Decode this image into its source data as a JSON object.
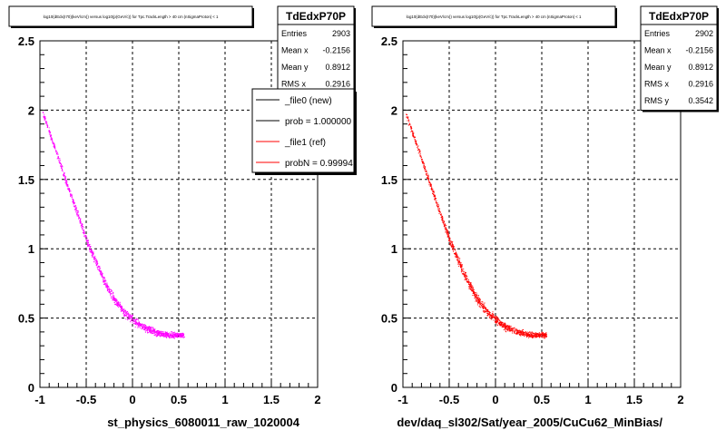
{
  "chart_data": [
    {
      "type": "scatter",
      "title": "log10(dEdx(I70)(keV/cm)) versus log10(p(GeV/c)) for Tpc.TrackLength > 40 cm |nSigmaProton| < 1",
      "xlabel": "st_physics_6080011_raw_1020004",
      "ylabel": "",
      "xlim": [
        -1,
        2
      ],
      "ylim": [
        0,
        2.5
      ],
      "x_ticks": [
        "-1",
        "-0.5",
        "0",
        "0.5",
        "1",
        "1.5",
        "2"
      ],
      "y_ticks": [
        "0",
        "0.5",
        "1",
        "1.5",
        "2",
        "2.5"
      ],
      "grid": true,
      "marker_color": "#ff00ff",
      "curve": [
        {
          "x": -0.97,
          "y": 1.98
        },
        {
          "x": -0.9,
          "y": 1.84
        },
        {
          "x": -0.8,
          "y": 1.65
        },
        {
          "x": -0.7,
          "y": 1.45
        },
        {
          "x": -0.6,
          "y": 1.26
        },
        {
          "x": -0.5,
          "y": 1.07
        },
        {
          "x": -0.4,
          "y": 0.91
        },
        {
          "x": -0.3,
          "y": 0.76
        },
        {
          "x": -0.2,
          "y": 0.64
        },
        {
          "x": -0.1,
          "y": 0.55
        },
        {
          "x": 0.0,
          "y": 0.49
        },
        {
          "x": 0.1,
          "y": 0.44
        },
        {
          "x": 0.2,
          "y": 0.41
        },
        {
          "x": 0.3,
          "y": 0.39
        },
        {
          "x": 0.4,
          "y": 0.38
        },
        {
          "x": 0.55,
          "y": 0.38
        }
      ],
      "stats": {
        "name": "TdEdxP70P",
        "rows": [
          {
            "label": "Entries",
            "value": "2903"
          },
          {
            "label": "Mean x",
            "value": "-0.2156"
          },
          {
            "label": "Mean y",
            "value": "0.8912"
          },
          {
            "label": "RMS x",
            "value": "0.2916"
          }
        ]
      },
      "legend": {
        "placement": "top-right",
        "entries": [
          {
            "label": "_file0 (new)",
            "color": "#000000"
          },
          {
            "label": "prob = 1.000000",
            "color": "#000000"
          },
          {
            "label": "_file1 (ref)",
            "color": "#ff0000"
          },
          {
            "label": "probN = 0.99994",
            "color": "#ff0000"
          }
        ]
      }
    },
    {
      "type": "scatter",
      "title": "log10(dEdx(I70)(keV/cm)) versus log10(p(GeV/c)) for Tpc.TrackLength > 40 cm |nSigmaProton| < 1",
      "xlabel": "dev/daq_sl302/Sat/year_2005/CuCu62_MinBias/",
      "ylabel": "",
      "xlim": [
        -1,
        2
      ],
      "ylim": [
        0,
        2.5
      ],
      "x_ticks": [
        "-1",
        "-0.5",
        "0",
        "0.5",
        "1",
        "1.5",
        "2"
      ],
      "y_ticks": [
        "0",
        "0.5",
        "1",
        "1.5",
        "2",
        "2.5"
      ],
      "grid": true,
      "marker_color": "#ff0000",
      "curve": [
        {
          "x": -0.97,
          "y": 1.98
        },
        {
          "x": -0.9,
          "y": 1.84
        },
        {
          "x": -0.8,
          "y": 1.65
        },
        {
          "x": -0.7,
          "y": 1.45
        },
        {
          "x": -0.6,
          "y": 1.26
        },
        {
          "x": -0.5,
          "y": 1.07
        },
        {
          "x": -0.4,
          "y": 0.91
        },
        {
          "x": -0.3,
          "y": 0.76
        },
        {
          "x": -0.2,
          "y": 0.64
        },
        {
          "x": -0.1,
          "y": 0.55
        },
        {
          "x": 0.0,
          "y": 0.49
        },
        {
          "x": 0.1,
          "y": 0.44
        },
        {
          "x": 0.2,
          "y": 0.41
        },
        {
          "x": 0.3,
          "y": 0.39
        },
        {
          "x": 0.4,
          "y": 0.38
        },
        {
          "x": 0.55,
          "y": 0.38
        }
      ],
      "stats": {
        "name": "TdEdxP70P",
        "rows": [
          {
            "label": "Entries",
            "value": "2902"
          },
          {
            "label": "Mean x",
            "value": "-0.2156"
          },
          {
            "label": "Mean y",
            "value": "0.8912"
          },
          {
            "label": "RMS x",
            "value": "0.2916"
          },
          {
            "label": "RMS y",
            "value": "0.3542"
          }
        ]
      }
    }
  ]
}
